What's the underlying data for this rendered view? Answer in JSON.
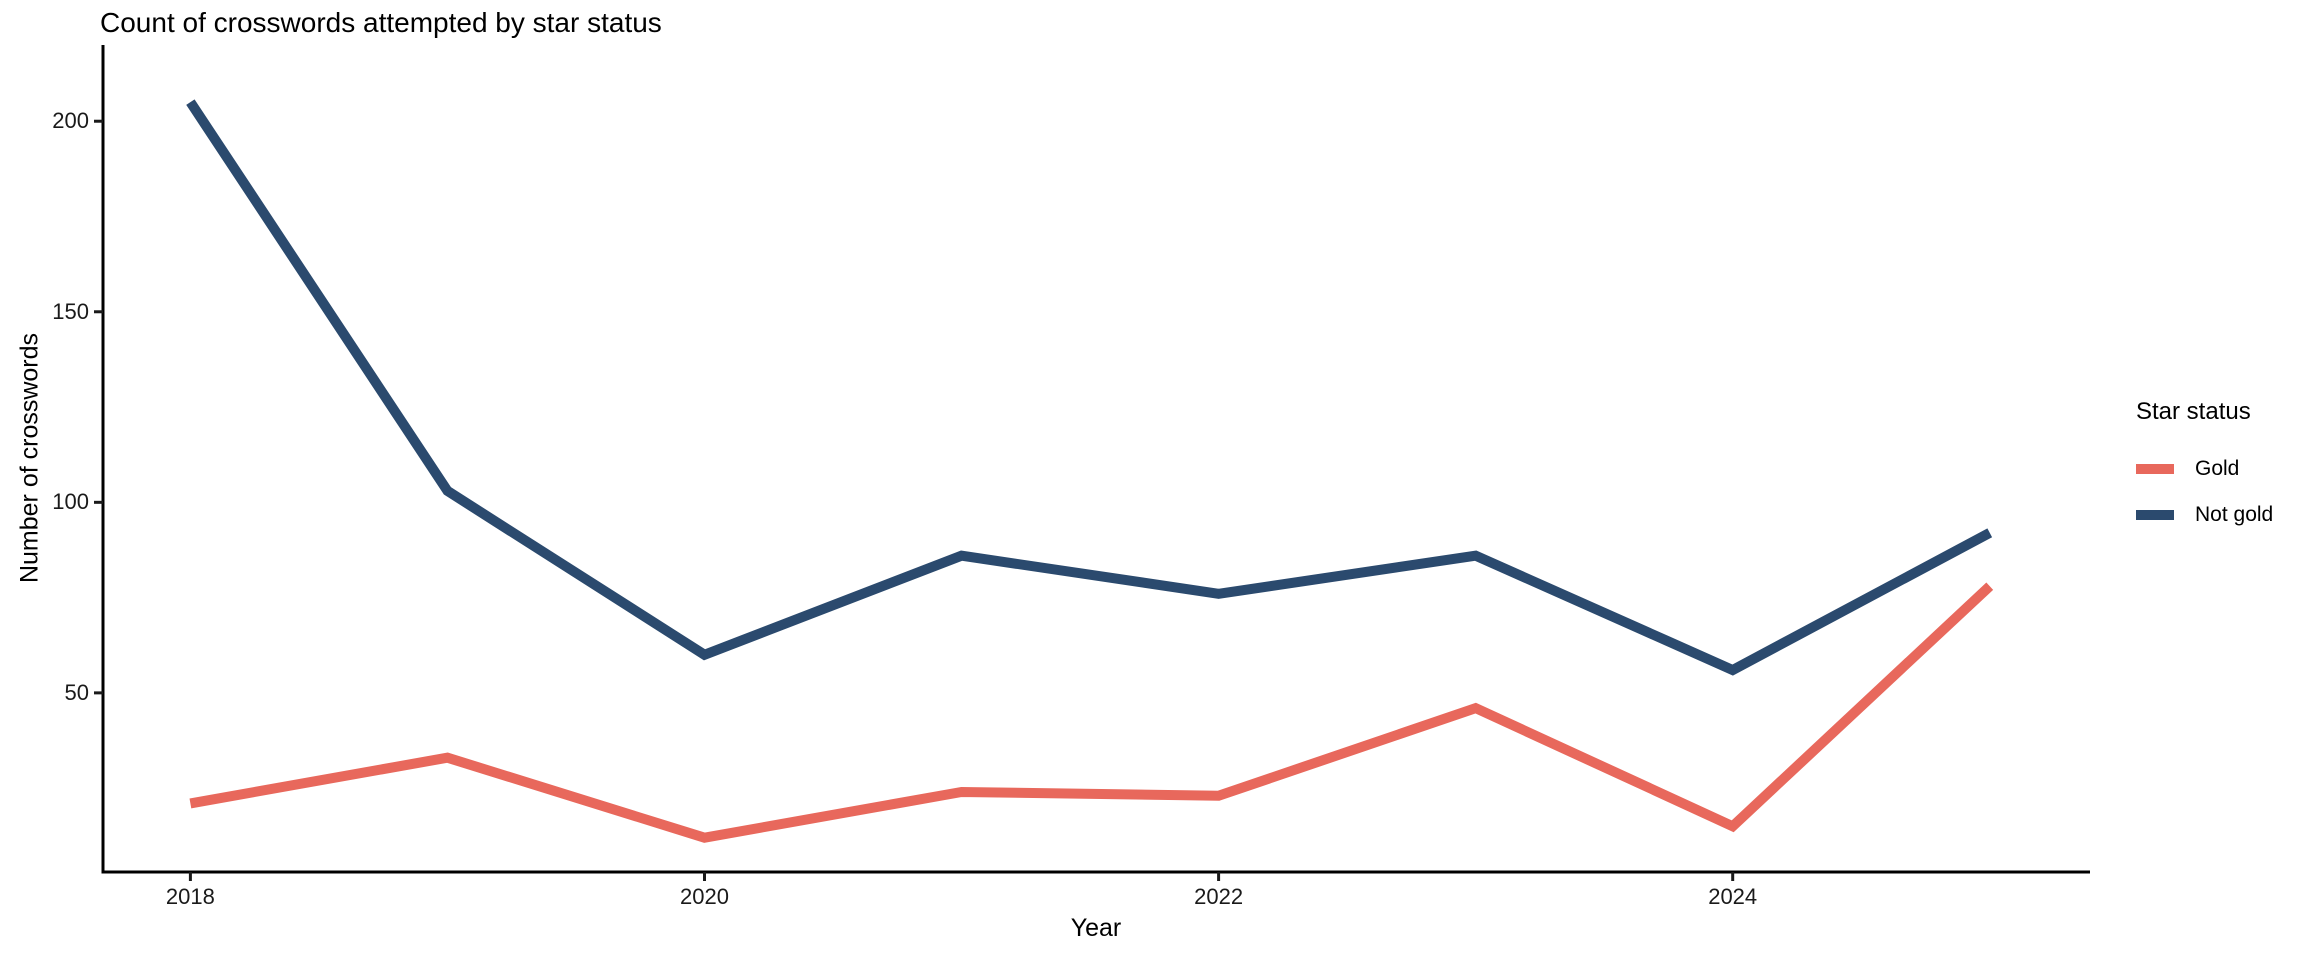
{
  "chart_data": {
    "type": "line",
    "title": "Count of crosswords attempted by star status",
    "xlabel": "Year",
    "ylabel": "Number of crosswords",
    "legend_title": "Star status",
    "legend_position": "right-center",
    "grid": false,
    "x": [
      2018,
      2019,
      2020,
      2021,
      2022,
      2023,
      2024,
      2025
    ],
    "series": [
      {
        "name": "Gold",
        "color": "#E8685C",
        "values": [
          21,
          33,
          12,
          24,
          23,
          46,
          15,
          78
        ]
      },
      {
        "name": "Not gold",
        "color": "#2B4A6E",
        "values": [
          205,
          103,
          60,
          86,
          76,
          86,
          56,
          92
        ]
      }
    ],
    "xticks": [
      2018,
      2020,
      2022,
      2024
    ],
    "yticks": [
      50,
      100,
      150,
      200
    ],
    "xlim": [
      2017.66,
      2025.39
    ],
    "ylim": [
      3,
      220
    ],
    "axis_color": "#000000",
    "tick_text_color": "#1a1a1a",
    "line_width": 10
  }
}
